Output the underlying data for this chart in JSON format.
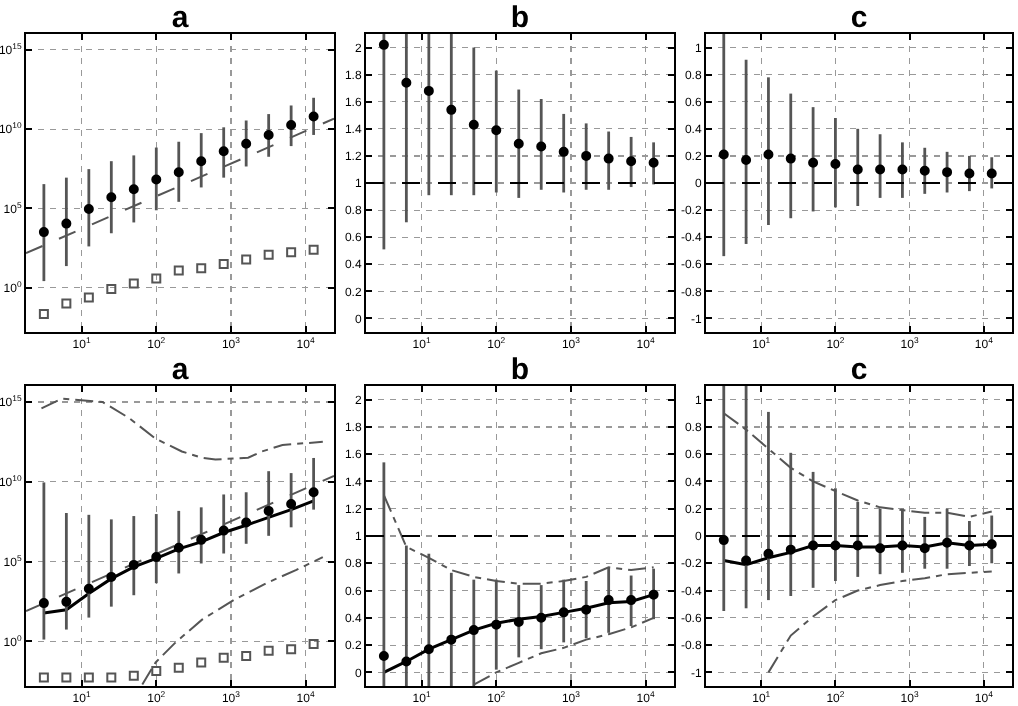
{
  "chart_data": [
    {
      "type": "scatter",
      "title": "a",
      "log": "xy",
      "grid": true,
      "x": [
        3.125,
        6.25,
        12.5,
        25,
        50,
        100,
        200,
        400,
        800,
        1600,
        3200,
        6400,
        12800
      ],
      "xlim": [
        1.8,
        24000
      ],
      "xticks": [
        {
          "value": 10,
          "label": "10$^{1}$"
        },
        {
          "value": 100,
          "label": "10$^{2}$"
        },
        {
          "value": 1000,
          "label": "10$^{3}$"
        },
        {
          "value": 10000,
          "label": "10$^{4}$"
        }
      ],
      "ylim": [
        0.0016,
        1e+16
      ],
      "yticks": [
        {
          "value": 1,
          "label": "10$^{0}$"
        },
        {
          "value": 100000,
          "label": "10$^{5}$"
        },
        {
          "value": 10000000000.0,
          "label": "10$^{10}$"
        },
        {
          "value": 1000000000000000.0,
          "label": "10$^{15}$"
        }
      ],
      "series": [
        {
          "type": "scatter",
          "marker": "circle",
          "color": "#000000",
          "values": [
            3200,
            11000,
            91000,
            500000,
            1600000,
            6600000,
            19000000,
            95000000,
            400000000,
            1200000000,
            4300000000,
            18000000000,
            62000000000
          ],
          "errors": [
            [
              2.6,
              3400000
            ],
            [
              23,
              8700000
            ],
            [
              400,
              30000000
            ],
            [
              2700,
              95000000
            ],
            [
              13000,
              220000000
            ],
            [
              76000,
              690000000
            ],
            [
              260000,
              1600000000
            ],
            [
              2100000,
              5600000000
            ],
            [
              8700000,
              13000000000
            ],
            [
              44000000,
              35000000000
            ],
            [
              180000000,
              89000000000
            ],
            [
              850000000,
              310000000000
            ],
            [
              4300000000,
              950000000000
            ]
          ]
        },
        {
          "type": "scatter",
          "marker": "square",
          "color": "#555555",
          "values": [
            0.022,
            0.1,
            0.24,
            0.83,
            1.8,
            3.8,
            12,
            17,
            31,
            60,
            120,
            170,
            250
          ]
        },
        {
          "type": "line",
          "line_style": "dashed",
          "color": "#555555",
          "x": [
            1.8,
            24000
          ],
          "values": [
            150,
            46000000000
          ]
        }
      ]
    },
    {
      "type": "scatter",
      "title": "b",
      "log": "x",
      "grid": true,
      "x": [
        3.125,
        6.25,
        12.5,
        25,
        50,
        100,
        200,
        400,
        800,
        1600,
        3200,
        6400,
        12800
      ],
      "xlim": [
        1.8,
        24000
      ],
      "xticks": [
        {
          "value": 10,
          "label": "10$^{1}$"
        },
        {
          "value": 100,
          "label": "10$^{2}$"
        },
        {
          "value": 1000,
          "label": "10$^{3}$"
        },
        {
          "value": 10000,
          "label": "10$^{4}$"
        }
      ],
      "ylim": [
        -0.1,
        2.1
      ],
      "yticks": [
        0,
        0.2,
        0.4,
        0.6,
        0.8,
        1,
        1.2,
        1.4,
        1.6,
        1.8,
        2
      ],
      "ref_lines": [
        {
          "axis": "y",
          "value": 1,
          "line_style": "dashed"
        }
      ],
      "series": [
        {
          "type": "scatter",
          "marker": "circle",
          "color": "#000000",
          "values": [
            2.02,
            1.74,
            1.68,
            1.54,
            1.43,
            1.39,
            1.29,
            1.27,
            1.23,
            1.2,
            1.18,
            1.16,
            1.15
          ],
          "errors": [
            [
              0.51,
              2.1
            ],
            [
              0.71,
              2.1
            ],
            [
              0.91,
              2.1
            ],
            [
              0.91,
              2.1
            ],
            [
              0.91,
              2
            ],
            [
              0.93,
              1.83
            ],
            [
              0.89,
              1.69
            ],
            [
              0.95,
              1.62
            ],
            [
              0.93,
              1.51
            ],
            [
              0.95,
              1.44
            ],
            [
              0.95,
              1.38
            ],
            [
              0.97,
              1.34
            ],
            [
              0.99,
              1.3
            ]
          ]
        }
      ]
    },
    {
      "type": "scatter",
      "title": "c",
      "log": "x",
      "grid": true,
      "x": [
        3.125,
        6.25,
        12.5,
        25,
        50,
        100,
        200,
        400,
        800,
        1600,
        3200,
        6400,
        12800
      ],
      "xlim": [
        1.8,
        24000
      ],
      "xticks": [
        {
          "value": 10,
          "label": "10$^{1}$"
        },
        {
          "value": 100,
          "label": "10$^{2}$"
        },
        {
          "value": 1000,
          "label": "10$^{3}$"
        },
        {
          "value": 10000,
          "label": "10$^{4}$"
        }
      ],
      "ylim": [
        -1.1,
        1.1
      ],
      "yticks": [
        -1,
        -0.8,
        -0.6,
        -0.4,
        -0.2,
        0,
        0.2,
        0.4,
        0.6,
        0.8,
        1
      ],
      "ref_lines": [
        {
          "axis": "y",
          "value": 0,
          "line_style": "dashed"
        }
      ],
      "series": [
        {
          "type": "scatter",
          "marker": "circle",
          "color": "#000000",
          "values": [
            0.21,
            0.17,
            0.21,
            0.18,
            0.15,
            0.14,
            0.1,
            0.1,
            0.1,
            0.09,
            0.08,
            0.07,
            0.07
          ],
          "errors": [
            [
              -0.54,
              1.1
            ],
            [
              -0.45,
              0.91
            ],
            [
              -0.31,
              0.78
            ],
            [
              -0.26,
              0.66
            ],
            [
              -0.21,
              0.56
            ],
            [
              -0.18,
              0.48
            ],
            [
              -0.17,
              0.4
            ],
            [
              -0.11,
              0.36
            ],
            [
              -0.11,
              0.3
            ],
            [
              -0.08,
              0.26
            ],
            [
              -0.07,
              0.23
            ],
            [
              -0.06,
              0.2
            ],
            [
              -0.04,
              0.19
            ]
          ]
        }
      ]
    },
    {
      "type": "scatter",
      "title": "a",
      "log": "xy",
      "grid": true,
      "x": [
        3.125,
        6.25,
        12.5,
        25,
        50,
        100,
        200,
        400,
        800,
        1600,
        3200,
        6400,
        12800
      ],
      "xlim": [
        1.8,
        24000
      ],
      "xticks": [
        {
          "value": 10,
          "label": "10$^{1}$"
        },
        {
          "value": 100,
          "label": "10$^{2}$"
        },
        {
          "value": 1000,
          "label": "10$^{3}$"
        },
        {
          "value": 10000,
          "label": "10$^{4}$"
        }
      ],
      "ylim": [
        0.0016,
        1e+16
      ],
      "yticks": [
        {
          "value": 1,
          "label": "10$^{0}$"
        },
        {
          "value": 100000,
          "label": "10$^{5}$"
        },
        {
          "value": 10000000000.0,
          "label": "10$^{10}$"
        },
        {
          "value": 1000000000000000.0,
          "label": "10$^{15}$"
        }
      ],
      "series": [
        {
          "type": "line",
          "line_style": "dashed",
          "color": "#555555",
          "x": [
            1.8,
            24000
          ],
          "values": [
            79,
            23000000000
          ]
        },
        {
          "type": "line",
          "line_style": "dotted",
          "color": "#555555",
          "x": [
            2.9,
            5.4,
            19,
            43,
            98,
            220,
            410,
            620,
            1700,
            2600,
            4900,
            17000
          ],
          "values": [
            400000000000000,
            1600000000000000,
            1000000000000000,
            100000000000000,
            5000000000000,
            790000000000,
            320000000000,
            250000000000,
            320000000000,
            790000000000,
            2000000000000,
            3200000000000
          ]
        },
        {
          "type": "line",
          "line_style": "dotted",
          "color": "#555555",
          "x": [
            65,
            98,
            180,
            410,
            1100,
            3200,
            7400,
            17000
          ],
          "values": [
            0.002,
            0.048,
            0.83,
            23,
            400,
            5200,
            29000,
            190000
          ]
        },
        {
          "type": "line",
          "line_style": "solid",
          "color": "#000000",
          "values": [
            60,
            95,
            1000,
            8500,
            47000,
            160000,
            620000,
            1700000,
            6600000,
            19000000,
            59000000,
            180000000,
            630000000
          ]
        },
        {
          "type": "scatter",
          "marker": "circle",
          "color": "#000000",
          "values": [
            250,
            300,
            2000,
            11000,
            62000,
            190000,
            740000,
            2300000,
            8700000,
            28000000,
            150000000,
            400000000,
            2200000000
          ],
          "errors": [
            [
              1.3,
              9100000000
            ],
            [
              5.5,
              110000000
            ],
            [
              31,
              85000000
            ],
            [
              150,
              44000000
            ],
            [
              780,
              71000000
            ],
            [
              4400,
              95000000
            ],
            [
              18000,
              150000000
            ],
            [
              76000,
              250000000
            ],
            [
              320000,
              1600000000
            ],
            [
              1300000,
              2200000000
            ],
            [
              4100000,
              46000000000
            ],
            [
              14000000,
              35000000000
            ],
            [
              180000000,
              310000000000
            ]
          ]
        },
        {
          "type": "scatter",
          "marker": "square",
          "color": "#555555",
          "values": [
            0.0054,
            0.0054,
            0.0054,
            0.0054,
            0.0071,
            0.014,
            0.022,
            0.048,
            0.093,
            0.12,
            0.26,
            0.32,
            0.68
          ]
        }
      ]
    },
    {
      "type": "scatter",
      "title": "b",
      "log": "x",
      "grid": true,
      "x": [
        3.125,
        6.25,
        12.5,
        25,
        50,
        100,
        200,
        400,
        800,
        1600,
        3200,
        6400,
        12800
      ],
      "xlim": [
        1.8,
        24000
      ],
      "xticks": [
        {
          "value": 10,
          "label": "10$^{1}$"
        },
        {
          "value": 100,
          "label": "10$^{2}$"
        },
        {
          "value": 1000,
          "label": "10$^{3}$"
        },
        {
          "value": 10000,
          "label": "10$^{4}$"
        }
      ],
      "ylim": [
        -0.1,
        2.1
      ],
      "yticks": [
        0,
        0.2,
        0.4,
        0.6,
        0.8,
        1,
        1.2,
        1.4,
        1.6,
        1.8,
        2
      ],
      "ref_lines": [
        {
          "axis": "y",
          "value": 1,
          "line_style": "dashed"
        }
      ],
      "series": [
        {
          "type": "line",
          "line_style": "dotted",
          "color": "#555555",
          "values": [
            1.3,
            0.92,
            0.84,
            0.75,
            0.7,
            0.67,
            0.65,
            0.65,
            0.67,
            0.7,
            0.77,
            0.75,
            0.77
          ]
        },
        {
          "type": "line",
          "line_style": "dotted",
          "color": "#555555",
          "values": [
            null,
            null,
            null,
            null,
            -0.09,
            0,
            0.07,
            0.14,
            0.18,
            0.24,
            0.28,
            0.33,
            0.4
          ]
        },
        {
          "type": "line",
          "line_style": "solid",
          "color": "#000000",
          "values": [
            0,
            0.08,
            0.17,
            0.24,
            0.31,
            0.36,
            0.39,
            0.41,
            0.44,
            0.47,
            0.51,
            0.52,
            0.57
          ]
        },
        {
          "type": "scatter",
          "marker": "circle",
          "color": "#000000",
          "values": [
            0.12,
            0.08,
            0.17,
            0.24,
            0.31,
            0.35,
            0.37,
            0.4,
            0.44,
            0.46,
            0.53,
            0.53,
            0.57
          ],
          "errors": [
            [
              -0.1,
              1.54
            ],
            [
              -0.1,
              0.93
            ],
            [
              -0.1,
              0.87
            ],
            [
              -0.1,
              0.73
            ],
            [
              -0.1,
              0.68
            ],
            [
              0.02,
              0.68
            ],
            [
              0.11,
              0.64
            ],
            [
              0.17,
              0.64
            ],
            [
              0.22,
              0.68
            ],
            [
              0.25,
              0.67
            ],
            [
              0.29,
              0.77
            ],
            [
              0.34,
              0.71
            ],
            [
              0.39,
              0.76
            ]
          ]
        }
      ]
    },
    {
      "type": "scatter",
      "title": "c",
      "log": "x",
      "grid": true,
      "x": [
        3.125,
        6.25,
        12.5,
        25,
        50,
        100,
        200,
        400,
        800,
        1600,
        3200,
        6400,
        12800
      ],
      "xlim": [
        1.8,
        24000
      ],
      "xticks": [
        {
          "value": 10,
          "label": "10$^{1}$"
        },
        {
          "value": 100,
          "label": "10$^{2}$"
        },
        {
          "value": 1000,
          "label": "10$^{3}$"
        },
        {
          "value": 10000,
          "label": "10$^{4}$"
        }
      ],
      "ylim": [
        -1.1,
        1.1
      ],
      "yticks": [
        -1,
        -0.8,
        -0.6,
        -0.4,
        -0.2,
        0,
        0.2,
        0.4,
        0.6,
        0.8,
        1
      ],
      "ref_lines": [
        {
          "axis": "y",
          "value": 0,
          "line_style": "dashed"
        }
      ],
      "series": [
        {
          "type": "line",
          "line_style": "dotted",
          "color": "#555555",
          "values": [
            0.9,
            0.78,
            0.64,
            0.5,
            0.4,
            0.33,
            0.26,
            0.21,
            0.19,
            0.17,
            0.17,
            0.14,
            0.18
          ]
        },
        {
          "type": "line",
          "line_style": "dotted",
          "color": "#555555",
          "values": [
            null,
            null,
            -1,
            -0.73,
            -0.59,
            -0.47,
            -0.4,
            -0.36,
            -0.33,
            -0.31,
            -0.28,
            -0.27,
            -0.26
          ]
        },
        {
          "type": "line",
          "line_style": "solid",
          "color": "#000000",
          "values": [
            -0.18,
            -0.21,
            -0.16,
            -0.12,
            -0.07,
            -0.07,
            -0.08,
            -0.08,
            -0.07,
            -0.08,
            -0.05,
            -0.07,
            -0.06
          ]
        },
        {
          "type": "scatter",
          "marker": "circle",
          "color": "#000000",
          "values": [
            -0.03,
            -0.18,
            -0.13,
            -0.1,
            -0.07,
            -0.07,
            -0.07,
            -0.09,
            -0.07,
            -0.09,
            -0.05,
            -0.07,
            -0.06
          ],
          "errors": [
            [
              -0.55,
              1.1
            ],
            [
              -0.53,
              1.1
            ],
            [
              -0.47,
              0.91
            ],
            [
              -0.44,
              0.61
            ],
            [
              -0.38,
              0.47
            ],
            [
              -0.33,
              0.35
            ],
            [
              -0.3,
              0.25
            ],
            [
              -0.28,
              0.2
            ],
            [
              -0.27,
              0.2
            ],
            [
              -0.24,
              0.14
            ],
            [
              -0.24,
              0.2
            ],
            [
              -0.22,
              0.11
            ],
            [
              -0.2,
              0.15
            ]
          ]
        }
      ]
    }
  ]
}
